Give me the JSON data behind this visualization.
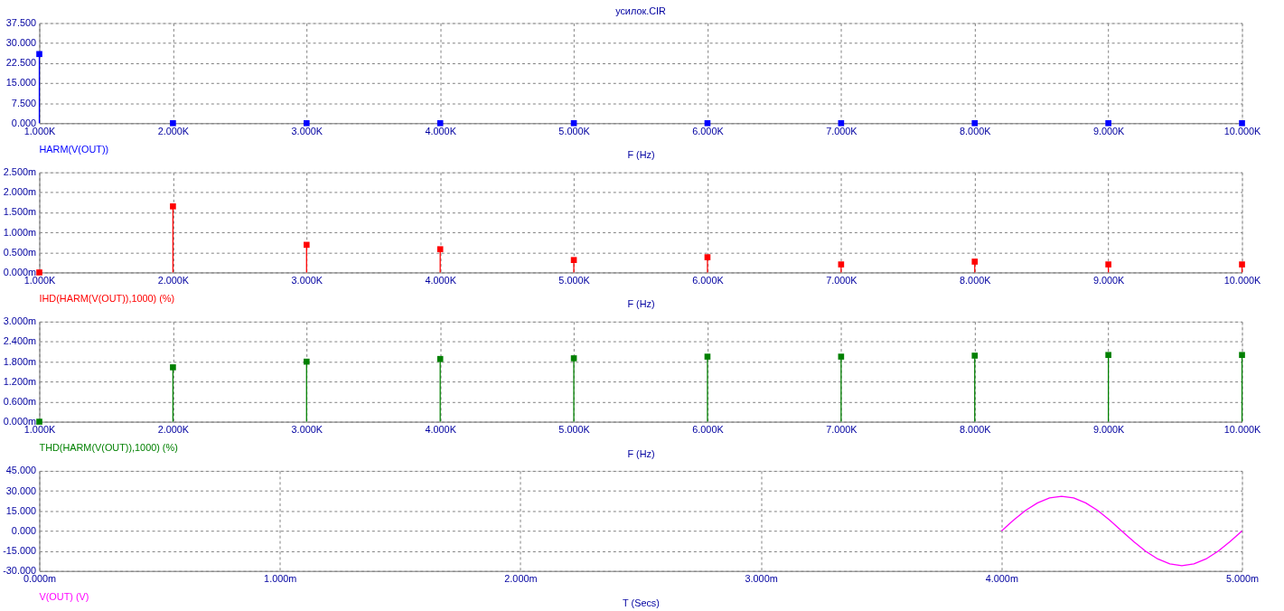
{
  "chart_data": [
    {
      "type": "lollipop",
      "title": "усилок.CIR",
      "xlabel": "F (Hz)",
      "marker": "square",
      "grid": true,
      "legend": "bottom left",
      "x": [
        1000,
        2000,
        3000,
        4000,
        5000,
        6000,
        7000,
        8000,
        9000,
        10000
      ],
      "xlim": [
        1000,
        10000
      ],
      "xticks": [
        {
          "value": 1000,
          "label": "1.000K"
        },
        {
          "value": 2000,
          "label": "2.000K"
        },
        {
          "value": 3000,
          "label": "3.000K"
        },
        {
          "value": 4000,
          "label": "4.000K"
        },
        {
          "value": 5000,
          "label": "5.000K"
        },
        {
          "value": 6000,
          "label": "6.000K"
        },
        {
          "value": 7000,
          "label": "7.000K"
        },
        {
          "value": 8000,
          "label": "8.000K"
        },
        {
          "value": 9000,
          "label": "9.000K"
        },
        {
          "value": 10000,
          "label": "10.000K"
        }
      ],
      "ylim": [
        0,
        37.5
      ],
      "yticks": [
        {
          "value": 0,
          "label": "0.000"
        },
        {
          "value": 7.5,
          "label": "7.500"
        },
        {
          "value": 15,
          "label": "15.000"
        },
        {
          "value": 22.5,
          "label": "22.500"
        },
        {
          "value": 30,
          "label": "30.000"
        },
        {
          "value": 37.5,
          "label": "37.500"
        }
      ],
      "series": [
        {
          "name": "HARM(V(OUT))",
          "color": "#0000ff",
          "values": [
            25.9,
            0,
            0,
            0,
            0,
            0,
            0,
            0,
            0,
            0
          ]
        }
      ]
    },
    {
      "type": "lollipop",
      "xlabel": "F (Hz)",
      "marker": "square",
      "grid": true,
      "legend": "bottom left",
      "x": [
        1000,
        2000,
        3000,
        4000,
        5000,
        6000,
        7000,
        8000,
        9000,
        10000
      ],
      "xlim": [
        1000,
        10000
      ],
      "xticks": [
        {
          "value": 1000,
          "label": "1.000K"
        },
        {
          "value": 2000,
          "label": "2.000K"
        },
        {
          "value": 3000,
          "label": "3.000K"
        },
        {
          "value": 4000,
          "label": "4.000K"
        },
        {
          "value": 5000,
          "label": "5.000K"
        },
        {
          "value": 6000,
          "label": "6.000K"
        },
        {
          "value": 7000,
          "label": "7.000K"
        },
        {
          "value": 8000,
          "label": "8.000K"
        },
        {
          "value": 9000,
          "label": "9.000K"
        },
        {
          "value": 10000,
          "label": "10.000K"
        }
      ],
      "ylim": [
        0,
        2.5
      ],
      "yticks": [
        {
          "value": 0,
          "label": "0.000m"
        },
        {
          "value": 0.5,
          "label": "0.500m"
        },
        {
          "value": 1,
          "label": "1.000m"
        },
        {
          "value": 1.5,
          "label": "1.500m"
        },
        {
          "value": 2,
          "label": "2.000m"
        },
        {
          "value": 2.5,
          "label": "2.500m"
        }
      ],
      "series": [
        {
          "name": "IHD(HARM(V(OUT)),1000) (%)",
          "color": "#ff0000",
          "values": [
            0,
            1.65,
            0.69,
            0.58,
            0.31,
            0.38,
            0.2,
            0.27,
            0.2,
            0.2
          ]
        }
      ]
    },
    {
      "type": "lollipop",
      "xlabel": "F (Hz)",
      "marker": "square",
      "grid": true,
      "legend": "bottom left",
      "x": [
        1000,
        2000,
        3000,
        4000,
        5000,
        6000,
        7000,
        8000,
        9000,
        10000
      ],
      "xlim": [
        1000,
        10000
      ],
      "xticks": [
        {
          "value": 1000,
          "label": "1.000K"
        },
        {
          "value": 2000,
          "label": "2.000K"
        },
        {
          "value": 3000,
          "label": "3.000K"
        },
        {
          "value": 4000,
          "label": "4.000K"
        },
        {
          "value": 5000,
          "label": "5.000K"
        },
        {
          "value": 6000,
          "label": "6.000K"
        },
        {
          "value": 7000,
          "label": "7.000K"
        },
        {
          "value": 8000,
          "label": "8.000K"
        },
        {
          "value": 9000,
          "label": "9.000K"
        },
        {
          "value": 10000,
          "label": "10.000K"
        }
      ],
      "ylim": [
        0,
        3
      ],
      "yticks": [
        {
          "value": 0,
          "label": "0.000m"
        },
        {
          "value": 0.6,
          "label": "0.600m"
        },
        {
          "value": 1.2,
          "label": "1.200m"
        },
        {
          "value": 1.8,
          "label": "1.800m"
        },
        {
          "value": 2.4,
          "label": "2.400m"
        },
        {
          "value": 3,
          "label": "3.000m"
        }
      ],
      "series": [
        {
          "name": "THD(HARM(V(OUT)),1000) (%)",
          "color": "#008000",
          "values": [
            0,
            1.63,
            1.8,
            1.88,
            1.9,
            1.95,
            1.95,
            1.98,
            2.0,
            2.0
          ]
        }
      ]
    },
    {
      "type": "line",
      "xlabel": "T (Secs)",
      "marker": "none",
      "line_style": "solid",
      "grid": true,
      "legend": "bottom left",
      "x": [
        4.0,
        4.05,
        4.1,
        4.15,
        4.2,
        4.25,
        4.3,
        4.35,
        4.4,
        4.45,
        4.5,
        4.55,
        4.6,
        4.65,
        4.7,
        4.75,
        4.8,
        4.85,
        4.9,
        4.95,
        5.0
      ],
      "xlim": [
        0,
        5
      ],
      "xticks": [
        {
          "value": 0,
          "label": "0.000m"
        },
        {
          "value": 1,
          "label": "1.000m"
        },
        {
          "value": 2,
          "label": "2.000m"
        },
        {
          "value": 3,
          "label": "3.000m"
        },
        {
          "value": 4,
          "label": "4.000m"
        },
        {
          "value": 5,
          "label": "5.000m"
        }
      ],
      "ylim": [
        -30,
        45
      ],
      "yticks": [
        {
          "value": -30,
          "label": "-30.000"
        },
        {
          "value": -15,
          "label": "-15.000"
        },
        {
          "value": 0,
          "label": "0.000"
        },
        {
          "value": 15,
          "label": "15.000"
        },
        {
          "value": 30,
          "label": "30.000"
        },
        {
          "value": 45,
          "label": "45.000"
        }
      ],
      "series": [
        {
          "name": "V(OUT) (V)",
          "color": "#ff00ff",
          "values": [
            0,
            8.0,
            15.3,
            21.0,
            24.7,
            26.0,
            24.7,
            21.0,
            15.3,
            8.0,
            0,
            -8.0,
            -15.3,
            -21.0,
            -24.7,
            -26.0,
            -24.7,
            -21.0,
            -15.3,
            -8.0,
            0
          ]
        }
      ]
    }
  ]
}
